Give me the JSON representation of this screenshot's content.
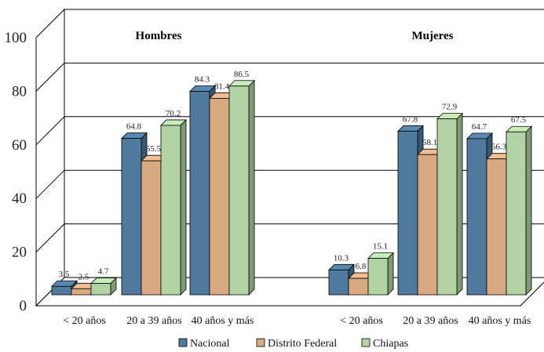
{
  "chart_data": {
    "type": "bar",
    "groups": [
      {
        "title": "Hombres",
        "categories": [
          "< 20 años",
          "20 a 39 años",
          "40 años y más"
        ]
      },
      {
        "title": "Mujeres",
        "categories": [
          "< 20 años",
          "20 a 39 años",
          "40 años  y más"
        ]
      }
    ],
    "series": [
      {
        "name": "Nacional",
        "color": "#4f7a9d",
        "values": [
          3.5,
          64.8,
          84.3,
          10.3,
          67.8,
          64.7
        ]
      },
      {
        "name": "Distrito Federal",
        "color": "#d9aa82",
        "values": [
          2.5,
          55.5,
          81.4,
          6.8,
          58.1,
          56.3
        ]
      },
      {
        "name": "Chiapas",
        "color": "#b2d4a4",
        "values": [
          4.7,
          70.2,
          86.5,
          15.1,
          72.9,
          67.5
        ]
      }
    ],
    "ylim": [
      0,
      100
    ],
    "yticks": [
      0,
      20,
      40,
      60,
      80,
      100
    ],
    "grid": true,
    "legend": "bottom"
  }
}
